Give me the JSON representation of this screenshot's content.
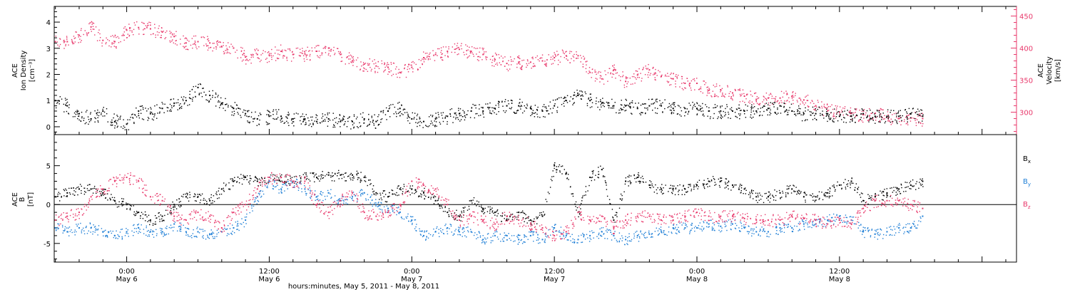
{
  "colors": {
    "black": "#000000",
    "pink": "#e8386b",
    "blue": "#1f7fd6"
  },
  "top_panel": {
    "left_label_1": "ACE",
    "left_label_2": "Ion Density",
    "left_label_3": "[cm⁻³]",
    "right_label_1": "ACE",
    "right_label_2": "Velocity",
    "right_label_3": "[km/s]"
  },
  "bottom_panel": {
    "left_label_1": "ACE",
    "left_label_2": "B",
    "left_label_3": "[nT]",
    "legend": [
      {
        "base": "B",
        "sub": "x",
        "color": "#000000"
      },
      {
        "base": "B",
        "sub": "y",
        "color": "#1f7fd6"
      },
      {
        "base": "B",
        "sub": "z",
        "color": "#e8386b"
      }
    ]
  },
  "x_axis": {
    "title": "hours:minutes,  May  5, 2011 - May  8, 2011",
    "ticks": [
      {
        "time": "0:00",
        "date": "May 6",
        "hour": 24
      },
      {
        "time": "12:00",
        "date": "May 6",
        "hour": 36
      },
      {
        "time": "0:00",
        "date": "May 7",
        "hour": 48
      },
      {
        "time": "12:00",
        "date": "May 7",
        "hour": 60
      },
      {
        "time": "0:00",
        "date": "May 8",
        "hour": 72
      },
      {
        "time": "12:00",
        "date": "May 8",
        "hour": 84
      }
    ]
  },
  "chart_data": [
    {
      "type": "scatter",
      "panel": "top",
      "x_unit": "hours since May 5, 2011 00:00",
      "xlim": [
        17.9,
        98.9
      ],
      "left_axis": {
        "ylim": [
          -0.3,
          4.6
        ],
        "ticks": [
          0,
          1,
          2,
          3,
          4
        ]
      },
      "right_axis": {
        "ylim": [
          265,
          465
        ],
        "ticks": [
          300,
          350,
          400,
          450
        ]
      },
      "series": [
        {
          "color": "#000000",
          "axis": "left",
          "x": [
            18,
            19,
            20,
            21,
            22,
            23,
            24,
            25,
            26,
            27,
            28,
            29,
            30,
            31,
            32,
            33,
            34,
            35,
            36,
            37,
            38,
            39,
            40,
            41,
            42,
            43,
            44,
            45,
            46,
            47,
            48,
            49,
            50,
            51,
            52,
            53,
            54,
            55,
            56,
            57,
            58,
            59,
            60,
            61,
            62,
            63,
            64,
            65,
            66,
            67,
            68,
            69,
            70,
            71,
            72,
            73,
            74,
            75,
            76,
            77,
            78,
            79,
            80,
            81,
            82,
            83,
            84,
            85,
            86,
            87,
            88,
            89,
            90,
            91
          ],
          "values": [
            1.0,
            0.8,
            0.5,
            0.3,
            0.6,
            0.2,
            0.1,
            0.6,
            0.5,
            0.7,
            0.9,
            1.0,
            1.5,
            1.2,
            0.9,
            0.7,
            0.5,
            0.3,
            0.4,
            0.4,
            0.3,
            0.3,
            0.2,
            0.3,
            0.2,
            0.2,
            0.3,
            0.2,
            0.6,
            0.7,
            0.3,
            0.2,
            0.3,
            0.4,
            0.5,
            0.6,
            0.6,
            0.7,
            0.8,
            0.8,
            0.7,
            0.6,
            0.8,
            1.0,
            1.2,
            1.0,
            0.9,
            0.8,
            0.8,
            0.7,
            0.8,
            0.8,
            0.7,
            0.7,
            0.7,
            0.6,
            0.6,
            0.6,
            0.6,
            0.6,
            0.7,
            0.8,
            0.6,
            0.5,
            0.5,
            0.5,
            0.4,
            0.4,
            0.5,
            0.4,
            0.4,
            0.4,
            0.5,
            0.4
          ]
        },
        {
          "color": "#e8386b",
          "axis": "right",
          "x": [
            18,
            19,
            20,
            21,
            22,
            23,
            24,
            25,
            26,
            27,
            28,
            29,
            30,
            31,
            32,
            33,
            34,
            35,
            36,
            37,
            38,
            39,
            40,
            41,
            42,
            43,
            44,
            45,
            46,
            47,
            48,
            49,
            50,
            51,
            52,
            53,
            54,
            55,
            56,
            57,
            58,
            59,
            60,
            61,
            62,
            63,
            64,
            65,
            66,
            67,
            68,
            69,
            70,
            71,
            72,
            73,
            74,
            75,
            76,
            77,
            78,
            79,
            80,
            81,
            82,
            83,
            84,
            85,
            86,
            87,
            88,
            89,
            90,
            91
          ],
          "values": [
            410,
            410,
            420,
            433,
            412,
            410,
            428,
            432,
            430,
            425,
            418,
            408,
            410,
            408,
            402,
            400,
            386,
            390,
            389,
            395,
            390,
            391,
            395,
            400,
            390,
            380,
            375,
            372,
            370,
            362,
            370,
            385,
            390,
            395,
            398,
            395,
            390,
            382,
            376,
            378,
            378,
            380,
            385,
            388,
            388,
            362,
            352,
            366,
            348,
            358,
            366,
            356,
            352,
            345,
            345,
            334,
            335,
            330,
            325,
            320,
            322,
            322,
            325,
            319,
            310,
            302,
            300,
            298,
            296,
            298,
            292,
            290,
            291,
            290
          ]
        }
      ]
    },
    {
      "type": "scatter",
      "panel": "bottom",
      "x_unit": "hours since May 5, 2011 00:00",
      "xlim": [
        17.9,
        98.9
      ],
      "ylim": [
        -7.4,
        9
      ],
      "yticks": [
        -5,
        0,
        5
      ],
      "series": [
        {
          "color": "#000000",
          "x": [
            18,
            19,
            20,
            21,
            22,
            23,
            24,
            25,
            26,
            27,
            28,
            29,
            30,
            31,
            32,
            33,
            34,
            35,
            36,
            37,
            38,
            39,
            40,
            41,
            42,
            43,
            44,
            45,
            46,
            47,
            48,
            49,
            50,
            51,
            52,
            53,
            54,
            55,
            56,
            57,
            58,
            59,
            60,
            61,
            62,
            63,
            64,
            65,
            66,
            67,
            68,
            69,
            70,
            71,
            72,
            73,
            74,
            75,
            76,
            77,
            78,
            79,
            80,
            81,
            82,
            83,
            84,
            85,
            86,
            87,
            88,
            89,
            90,
            91
          ],
          "values": [
            1.0,
            1.5,
            2.0,
            2.0,
            1.5,
            0.5,
            0.0,
            -1.0,
            -2.0,
            -1.5,
            0.0,
            1.0,
            1.0,
            0.5,
            2.0,
            3.0,
            3.5,
            3.0,
            3.5,
            3.5,
            3.0,
            3.5,
            3.5,
            3.8,
            3.8,
            3.8,
            3.5,
            1.5,
            1.0,
            2.0,
            2.0,
            1.5,
            0.5,
            -1.0,
            -1.5,
            0.5,
            -0.5,
            -1.0,
            -2.0,
            -1.0,
            -2.0,
            -1.5,
            5.0,
            4.0,
            -1.0,
            3.5,
            4.5,
            -2.0,
            3.0,
            3.5,
            2.5,
            2.0,
            2.0,
            2.0,
            2.5,
            3.0,
            3.0,
            2.5,
            2.0,
            1.0,
            1.0,
            1.5,
            2.0,
            1.0,
            1.0,
            1.5,
            2.5,
            3.0,
            0.5,
            1.0,
            1.5,
            2.0,
            2.5,
            3.0
          ]
        },
        {
          "color": "#1f7fd6",
          "x": [
            18,
            19,
            20,
            21,
            22,
            23,
            24,
            25,
            26,
            27,
            28,
            29,
            30,
            31,
            32,
            33,
            34,
            35,
            36,
            37,
            38,
            39,
            40,
            41,
            42,
            43,
            44,
            45,
            46,
            47,
            48,
            49,
            50,
            51,
            52,
            53,
            54,
            55,
            56,
            57,
            58,
            59,
            60,
            61,
            62,
            63,
            64,
            65,
            66,
            67,
            68,
            69,
            70,
            71,
            72,
            73,
            74,
            75,
            76,
            77,
            78,
            79,
            80,
            81,
            82,
            83,
            84,
            85,
            86,
            87,
            88,
            89,
            90,
            91
          ],
          "values": [
            -3.0,
            -3.5,
            -3.0,
            -3.0,
            -3.5,
            -4.0,
            -3.5,
            -3.0,
            -3.5,
            -3.5,
            -2.5,
            -3.5,
            -3.5,
            -3.8,
            -3.5,
            -3.0,
            -2.0,
            1.0,
            3.0,
            2.0,
            3.0,
            2.0,
            1.0,
            1.5,
            0.5,
            1.0,
            1.5,
            0.0,
            -0.5,
            -1.0,
            -2.0,
            -4.0,
            -3.5,
            -3.0,
            -3.5,
            -3.5,
            -4.5,
            -4.0,
            -4.0,
            -4.5,
            -4.0,
            -4.5,
            -3.0,
            -4.0,
            -4.5,
            -4.0,
            -3.5,
            -4.0,
            -4.5,
            -4.0,
            -3.8,
            -3.5,
            -3.0,
            -3.0,
            -3.0,
            -2.5,
            -2.8,
            -2.5,
            -3.0,
            -3.5,
            -3.5,
            -3.0,
            -3.0,
            -2.5,
            -2.5,
            -2.0,
            -1.5,
            -2.0,
            -3.5,
            -3.8,
            -3.5,
            -3.0,
            -3.0,
            -1.5
          ]
        },
        {
          "color": "#e8386b",
          "x": [
            18,
            19,
            20,
            21,
            22,
            23,
            24,
            25,
            26,
            27,
            28,
            29,
            30,
            31,
            32,
            33,
            34,
            35,
            36,
            37,
            38,
            39,
            40,
            41,
            42,
            43,
            44,
            45,
            46,
            47,
            48,
            49,
            50,
            51,
            52,
            53,
            54,
            55,
            56,
            57,
            58,
            59,
            60,
            61,
            62,
            63,
            64,
            65,
            66,
            67,
            68,
            69,
            70,
            71,
            72,
            73,
            74,
            75,
            76,
            77,
            78,
            79,
            80,
            81,
            82,
            83,
            84,
            85,
            86,
            87,
            88,
            89,
            90,
            91
          ],
          "values": [
            -2.0,
            -1.5,
            -1.0,
            1.0,
            2.0,
            3.0,
            3.5,
            3.0,
            1.0,
            0.5,
            -1.5,
            -2.0,
            -1.0,
            -1.5,
            -3.0,
            -1.0,
            0.0,
            2.0,
            3.5,
            3.5,
            3.0,
            3.0,
            0.0,
            -1.0,
            0.5,
            1.5,
            -1.0,
            -1.5,
            -1.0,
            0.0,
            3.0,
            2.5,
            2.0,
            0.0,
            -2.0,
            -1.5,
            -2.0,
            -2.5,
            -1.5,
            -2.0,
            -2.5,
            -3.0,
            -4.0,
            -3.5,
            -1.0,
            -2.0,
            -1.5,
            -3.0,
            -2.0,
            -1.5,
            -1.5,
            -2.0,
            -2.0,
            -1.5,
            -1.0,
            -1.5,
            -1.5,
            -1.5,
            -1.8,
            -2.0,
            -2.0,
            -2.0,
            -1.5,
            -1.8,
            -2.0,
            -2.5,
            -2.0,
            -2.5,
            -0.5,
            0.5,
            0.5,
            0.5,
            0.0,
            -0.5
          ]
        }
      ]
    }
  ]
}
